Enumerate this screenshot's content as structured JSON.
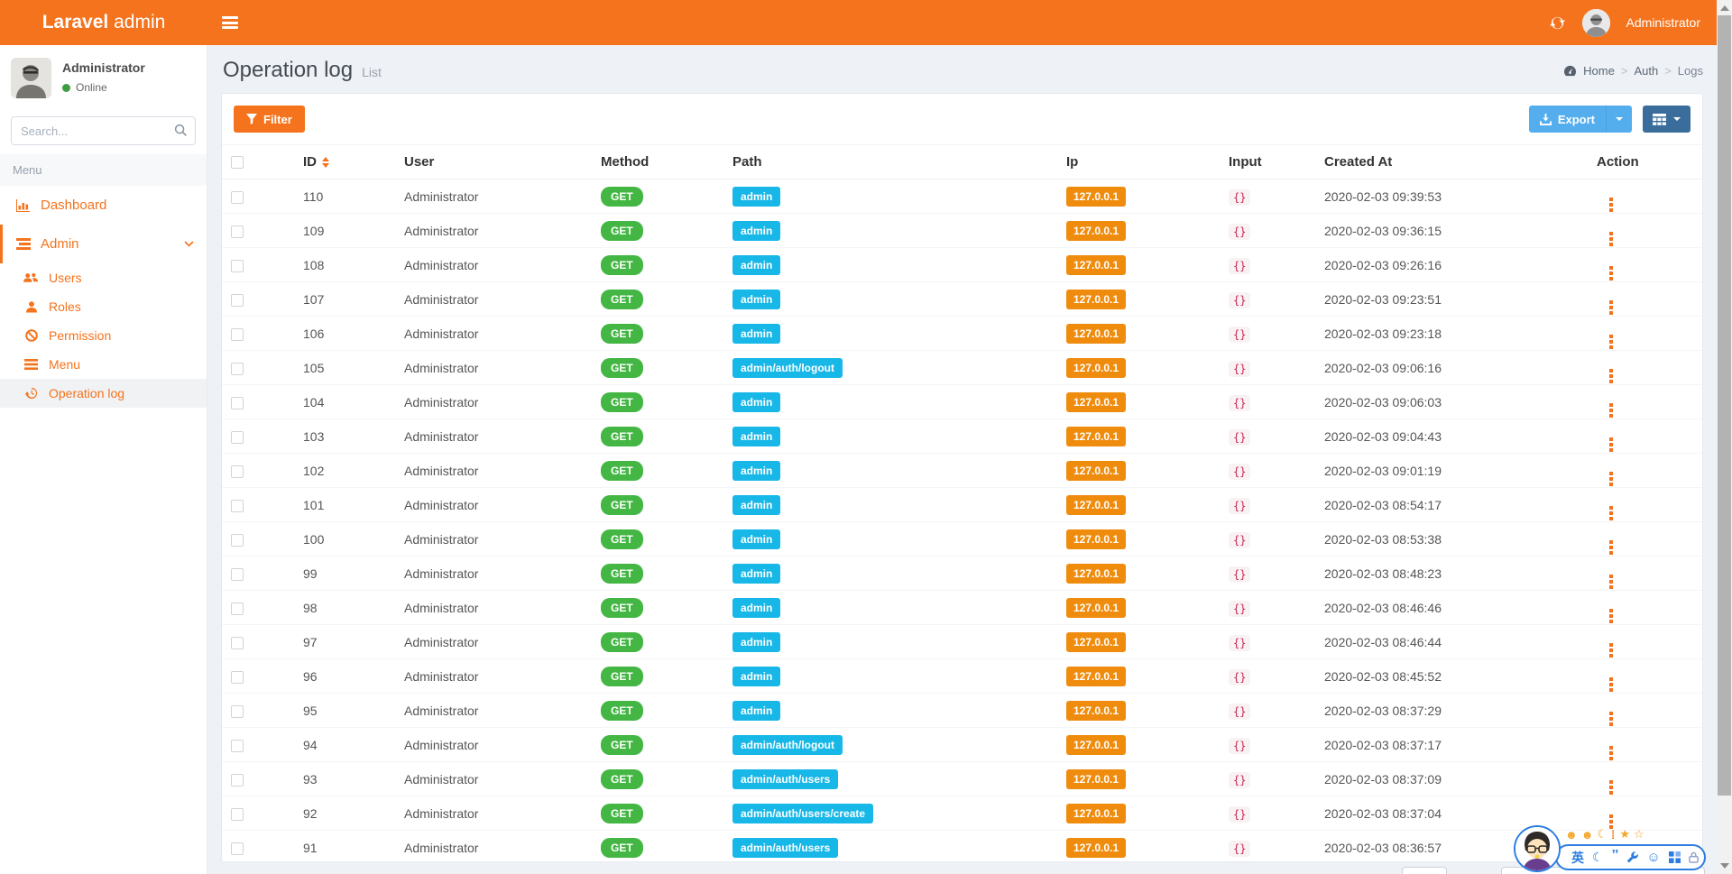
{
  "navbar": {
    "logo_bold": "Laravel",
    "logo_rest": " admin",
    "user_name": "Administrator"
  },
  "sidebar": {
    "user_name": "Administrator",
    "user_status": "Online",
    "search_placeholder": "Search...",
    "section_label": "Menu",
    "items": [
      {
        "label": "Dashboard",
        "icon": "bar-chart-icon",
        "level": "top"
      },
      {
        "label": "Admin",
        "icon": "tasks-icon",
        "level": "top",
        "expanded": true
      },
      {
        "label": "Users",
        "icon": "users-icon",
        "level": "child"
      },
      {
        "label": "Roles",
        "icon": "user-icon",
        "level": "child"
      },
      {
        "label": "Permission",
        "icon": "ban-icon",
        "level": "child"
      },
      {
        "label": "Menu",
        "icon": "bars-icon",
        "level": "child"
      },
      {
        "label": "Operation log",
        "icon": "history-icon",
        "level": "child",
        "active": true
      }
    ]
  },
  "page": {
    "title": "Operation log",
    "subtitle": "List",
    "breadcrumb": {
      "home": "Home",
      "auth": "Auth",
      "logs": "Logs"
    }
  },
  "toolbar": {
    "filter": "Filter",
    "export": "Export"
  },
  "table": {
    "columns": {
      "id": "ID",
      "user": "User",
      "method": "Method",
      "path": "Path",
      "ip": "Ip",
      "input": "Input",
      "created_at": "Created At",
      "action": "Action"
    },
    "rows": [
      {
        "id": "110",
        "user": "Administrator",
        "method": "GET",
        "path": "admin",
        "ip": "127.0.0.1",
        "input": "{}",
        "created_at": "2020-02-03 09:39:53"
      },
      {
        "id": "109",
        "user": "Administrator",
        "method": "GET",
        "path": "admin",
        "ip": "127.0.0.1",
        "input": "{}",
        "created_at": "2020-02-03 09:36:15"
      },
      {
        "id": "108",
        "user": "Administrator",
        "method": "GET",
        "path": "admin",
        "ip": "127.0.0.1",
        "input": "{}",
        "created_at": "2020-02-03 09:26:16"
      },
      {
        "id": "107",
        "user": "Administrator",
        "method": "GET",
        "path": "admin",
        "ip": "127.0.0.1",
        "input": "{}",
        "created_at": "2020-02-03 09:23:51"
      },
      {
        "id": "106",
        "user": "Administrator",
        "method": "GET",
        "path": "admin",
        "ip": "127.0.0.1",
        "input": "{}",
        "created_at": "2020-02-03 09:23:18"
      },
      {
        "id": "105",
        "user": "Administrator",
        "method": "GET",
        "path": "admin/auth/logout",
        "ip": "127.0.0.1",
        "input": "{}",
        "created_at": "2020-02-03 09:06:16"
      },
      {
        "id": "104",
        "user": "Administrator",
        "method": "GET",
        "path": "admin",
        "ip": "127.0.0.1",
        "input": "{}",
        "created_at": "2020-02-03 09:06:03"
      },
      {
        "id": "103",
        "user": "Administrator",
        "method": "GET",
        "path": "admin",
        "ip": "127.0.0.1",
        "input": "{}",
        "created_at": "2020-02-03 09:04:43"
      },
      {
        "id": "102",
        "user": "Administrator",
        "method": "GET",
        "path": "admin",
        "ip": "127.0.0.1",
        "input": "{}",
        "created_at": "2020-02-03 09:01:19"
      },
      {
        "id": "101",
        "user": "Administrator",
        "method": "GET",
        "path": "admin",
        "ip": "127.0.0.1",
        "input": "{}",
        "created_at": "2020-02-03 08:54:17"
      },
      {
        "id": "100",
        "user": "Administrator",
        "method": "GET",
        "path": "admin",
        "ip": "127.0.0.1",
        "input": "{}",
        "created_at": "2020-02-03 08:53:38"
      },
      {
        "id": "99",
        "user": "Administrator",
        "method": "GET",
        "path": "admin",
        "ip": "127.0.0.1",
        "input": "{}",
        "created_at": "2020-02-03 08:48:23"
      },
      {
        "id": "98",
        "user": "Administrator",
        "method": "GET",
        "path": "admin",
        "ip": "127.0.0.1",
        "input": "{}",
        "created_at": "2020-02-03 08:46:46"
      },
      {
        "id": "97",
        "user": "Administrator",
        "method": "GET",
        "path": "admin",
        "ip": "127.0.0.1",
        "input": "{}",
        "created_at": "2020-02-03 08:46:44"
      },
      {
        "id": "96",
        "user": "Administrator",
        "method": "GET",
        "path": "admin",
        "ip": "127.0.0.1",
        "input": "{}",
        "created_at": "2020-02-03 08:45:52"
      },
      {
        "id": "95",
        "user": "Administrator",
        "method": "GET",
        "path": "admin",
        "ip": "127.0.0.1",
        "input": "{}",
        "created_at": "2020-02-03 08:37:29"
      },
      {
        "id": "94",
        "user": "Administrator",
        "method": "GET",
        "path": "admin/auth/logout",
        "ip": "127.0.0.1",
        "input": "{}",
        "created_at": "2020-02-03 08:37:17"
      },
      {
        "id": "93",
        "user": "Administrator",
        "method": "GET",
        "path": "admin/auth/users",
        "ip": "127.0.0.1",
        "input": "{}",
        "created_at": "2020-02-03 08:37:09"
      },
      {
        "id": "92",
        "user": "Administrator",
        "method": "GET",
        "path": "admin/auth/users/create",
        "ip": "127.0.0.1",
        "input": "{}",
        "created_at": "2020-02-03 08:37:04"
      },
      {
        "id": "91",
        "user": "Administrator",
        "method": "GET",
        "path": "admin/auth/users",
        "ip": "127.0.0.1",
        "input": "{}",
        "created_at": "2020-02-03 08:36:57"
      }
    ]
  },
  "ime": {
    "lang_toggle": "英",
    "quote_glyph": "’’",
    "gold_icons": [
      "face",
      "face",
      "moon",
      "dots",
      "star",
      "star-outline"
    ],
    "tray_icons": [
      "chinese-english-toggle",
      "moon-icon",
      "punctuation-icon",
      "wrench-icon",
      "smiley-icon",
      "grid-icon",
      "lock-icon"
    ]
  },
  "colors": {
    "accent": "#f4731c",
    "page_bg": "#eef1f6",
    "badge_green": "#43b643",
    "badge_blue": "#17b7e7",
    "badge_orange": "#ef8c0e",
    "export_blue": "#54aeed",
    "grid_blue": "#3a6d9c",
    "code_red": "#c7254e",
    "code_bg": "#f9f2f4",
    "online_green": "#3c9e41",
    "ime_blue": "#2b7de1"
  }
}
